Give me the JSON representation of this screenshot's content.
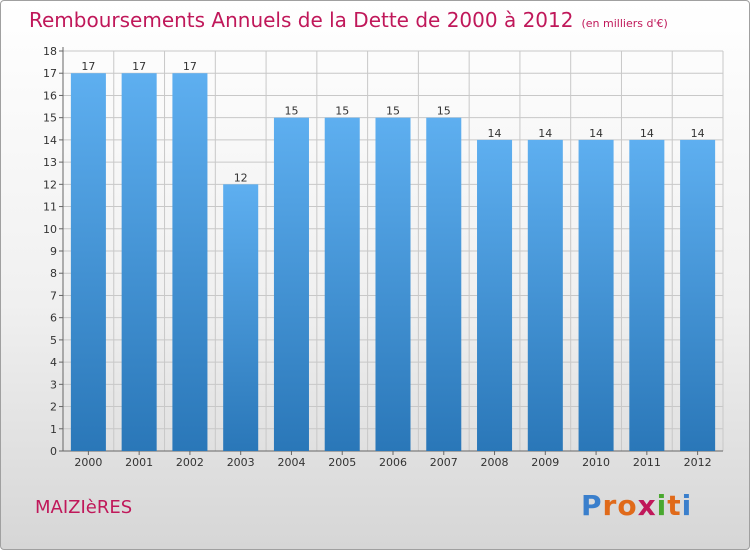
{
  "header": {
    "title": "Remboursements Annuels de la Dette de 2000 à 2012",
    "subtitle": "(en milliers d'€)"
  },
  "footer": {
    "commune": "MAIZIèRES",
    "logo_letters": [
      "P",
      "r",
      "o",
      "x",
      "i",
      "t",
      "i"
    ],
    "logo_colors": [
      "#3a7fcc",
      "#e06a1a",
      "#e06a1a",
      "#c0185a",
      "#49a82f",
      "#e06a1a",
      "#3a7fcc"
    ]
  },
  "colors": {
    "bar_top": "#5eaff0",
    "bar_bottom": "#2a77b8",
    "grid": "#c8c8c8",
    "axis_text": "#333333"
  },
  "chart_data": {
    "type": "bar",
    "title": "Remboursements Annuels de la Dette de 2000 à 2012",
    "subtitle": "(en milliers d'€)",
    "xlabel": "",
    "ylabel": "",
    "categories": [
      "2000",
      "2001",
      "2002",
      "2003",
      "2004",
      "2005",
      "2006",
      "2007",
      "2008",
      "2009",
      "2010",
      "2011",
      "2012"
    ],
    "values": [
      17,
      17,
      17,
      12,
      15,
      15,
      15,
      15,
      14,
      14,
      14,
      14,
      14
    ],
    "data_labels": [
      "17",
      "17",
      "17",
      "12",
      "15",
      "15",
      "15",
      "15",
      "14",
      "14",
      "14",
      "14",
      "14"
    ],
    "ylim": [
      0,
      18
    ],
    "yticks": [
      0,
      1,
      2,
      3,
      4,
      5,
      6,
      7,
      8,
      9,
      10,
      11,
      12,
      13,
      14,
      15,
      16,
      17,
      18
    ],
    "grid": true,
    "legend": "none"
  }
}
